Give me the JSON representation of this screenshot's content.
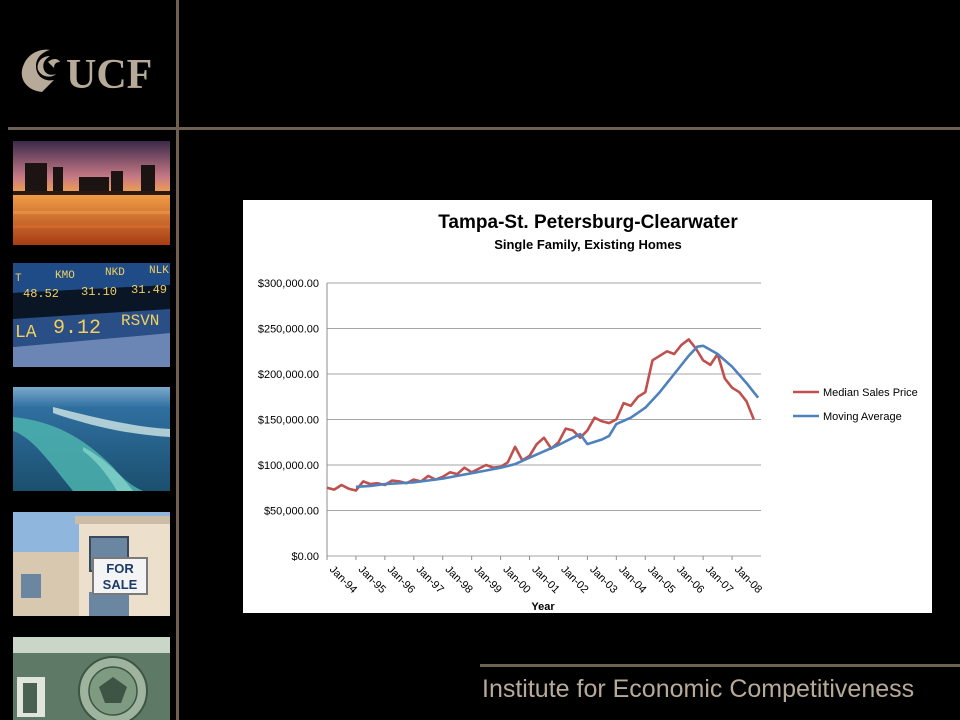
{
  "org": {
    "logo_text": "UCF"
  },
  "footer": {
    "text": "Institute for Economic Competitiveness"
  },
  "thumbnails": {
    "market": [
      "T",
      "KMO",
      "NKD",
      "NLK",
      "48.52",
      "31.10",
      "31.49",
      "LA",
      "9.12",
      "RSVN"
    ],
    "sale_sign": [
      "FOR",
      "SALE"
    ]
  },
  "chart_data": {
    "type": "line",
    "title": "Tampa-St. Petersburg-Clearwater",
    "subtitle": "Single Family, Existing Homes",
    "xlabel": "Year",
    "ylabel": "",
    "ylim": [
      0,
      300000
    ],
    "yticks": [
      0,
      50000,
      100000,
      150000,
      200000,
      250000,
      300000
    ],
    "ytick_labels": [
      "$0.00",
      "$50,000.00",
      "$100,000.00",
      "$150,000.00",
      "$200,000.00",
      "$250,000.00",
      "$300,000.00"
    ],
    "xtick_labels": [
      "Jan-94",
      "Jan-95",
      "Jan-96",
      "Jan-97",
      "Jan-98",
      "Jan-99",
      "Jan-00",
      "Jan-01",
      "Jan-02",
      "Jan-03",
      "Jan-04",
      "Jan-05",
      "Jan-06",
      "Jan-07",
      "Jan-08"
    ],
    "grid": true,
    "legend_position": "right",
    "series": [
      {
        "name": "Median Sales Price",
        "color": "#c0504d",
        "x": [
          1994.0,
          1994.25,
          1994.5,
          1994.75,
          1995.0,
          1995.25,
          1995.5,
          1995.75,
          1996.0,
          1996.25,
          1996.5,
          1996.75,
          1997.0,
          1997.25,
          1997.5,
          1997.75,
          1998.0,
          1998.25,
          1998.5,
          1998.75,
          1999.0,
          1999.25,
          1999.5,
          1999.75,
          2000.0,
          2000.25,
          2000.5,
          2000.75,
          2001.0,
          2001.25,
          2001.5,
          2001.75,
          2002.0,
          2002.25,
          2002.5,
          2002.75,
          2003.0,
          2003.25,
          2003.5,
          2003.75,
          2004.0,
          2004.25,
          2004.5,
          2004.75,
          2005.0,
          2005.25,
          2005.5,
          2005.75,
          2006.0,
          2006.25,
          2006.5,
          2006.75,
          2007.0,
          2007.25,
          2007.5,
          2007.75,
          2008.0,
          2008.25,
          2008.5,
          2008.75
        ],
        "y": [
          75000,
          73000,
          78000,
          74000,
          72000,
          82000,
          79000,
          80000,
          78000,
          83000,
          82000,
          80000,
          84000,
          82000,
          88000,
          84000,
          87000,
          92000,
          90000,
          97000,
          92000,
          96000,
          100000,
          97000,
          98000,
          103000,
          120000,
          105000,
          110000,
          123000,
          130000,
          118000,
          125000,
          140000,
          138000,
          130000,
          138000,
          152000,
          148000,
          146000,
          150000,
          168000,
          165000,
          175000,
          180000,
          215000,
          220000,
          225000,
          222000,
          232000,
          238000,
          228000,
          215000,
          210000,
          222000,
          195000,
          185000,
          180000,
          170000,
          150000
        ]
      },
      {
        "name": "Moving Average",
        "color": "#4f81bd",
        "x": [
          1995.0,
          1995.5,
          1996.0,
          1996.5,
          1997.0,
          1997.5,
          1998.0,
          1998.5,
          1999.0,
          1999.5,
          2000.0,
          2000.5,
          2001.0,
          2001.5,
          2002.0,
          2002.5,
          2002.75,
          2003.0,
          2003.5,
          2003.75,
          2004.0,
          2004.5,
          2005.0,
          2005.5,
          2006.0,
          2006.5,
          2006.8,
          2007.0,
          2007.5,
          2008.0,
          2008.5,
          2008.9
        ],
        "y": [
          76000,
          77000,
          79000,
          80000,
          81000,
          83000,
          85000,
          88000,
          91000,
          94000,
          97000,
          101000,
          108000,
          115000,
          122000,
          130000,
          134000,
          123000,
          128000,
          132000,
          145000,
          152000,
          163000,
          180000,
          200000,
          220000,
          230000,
          231000,
          222000,
          208000,
          190000,
          174000
        ]
      }
    ]
  }
}
